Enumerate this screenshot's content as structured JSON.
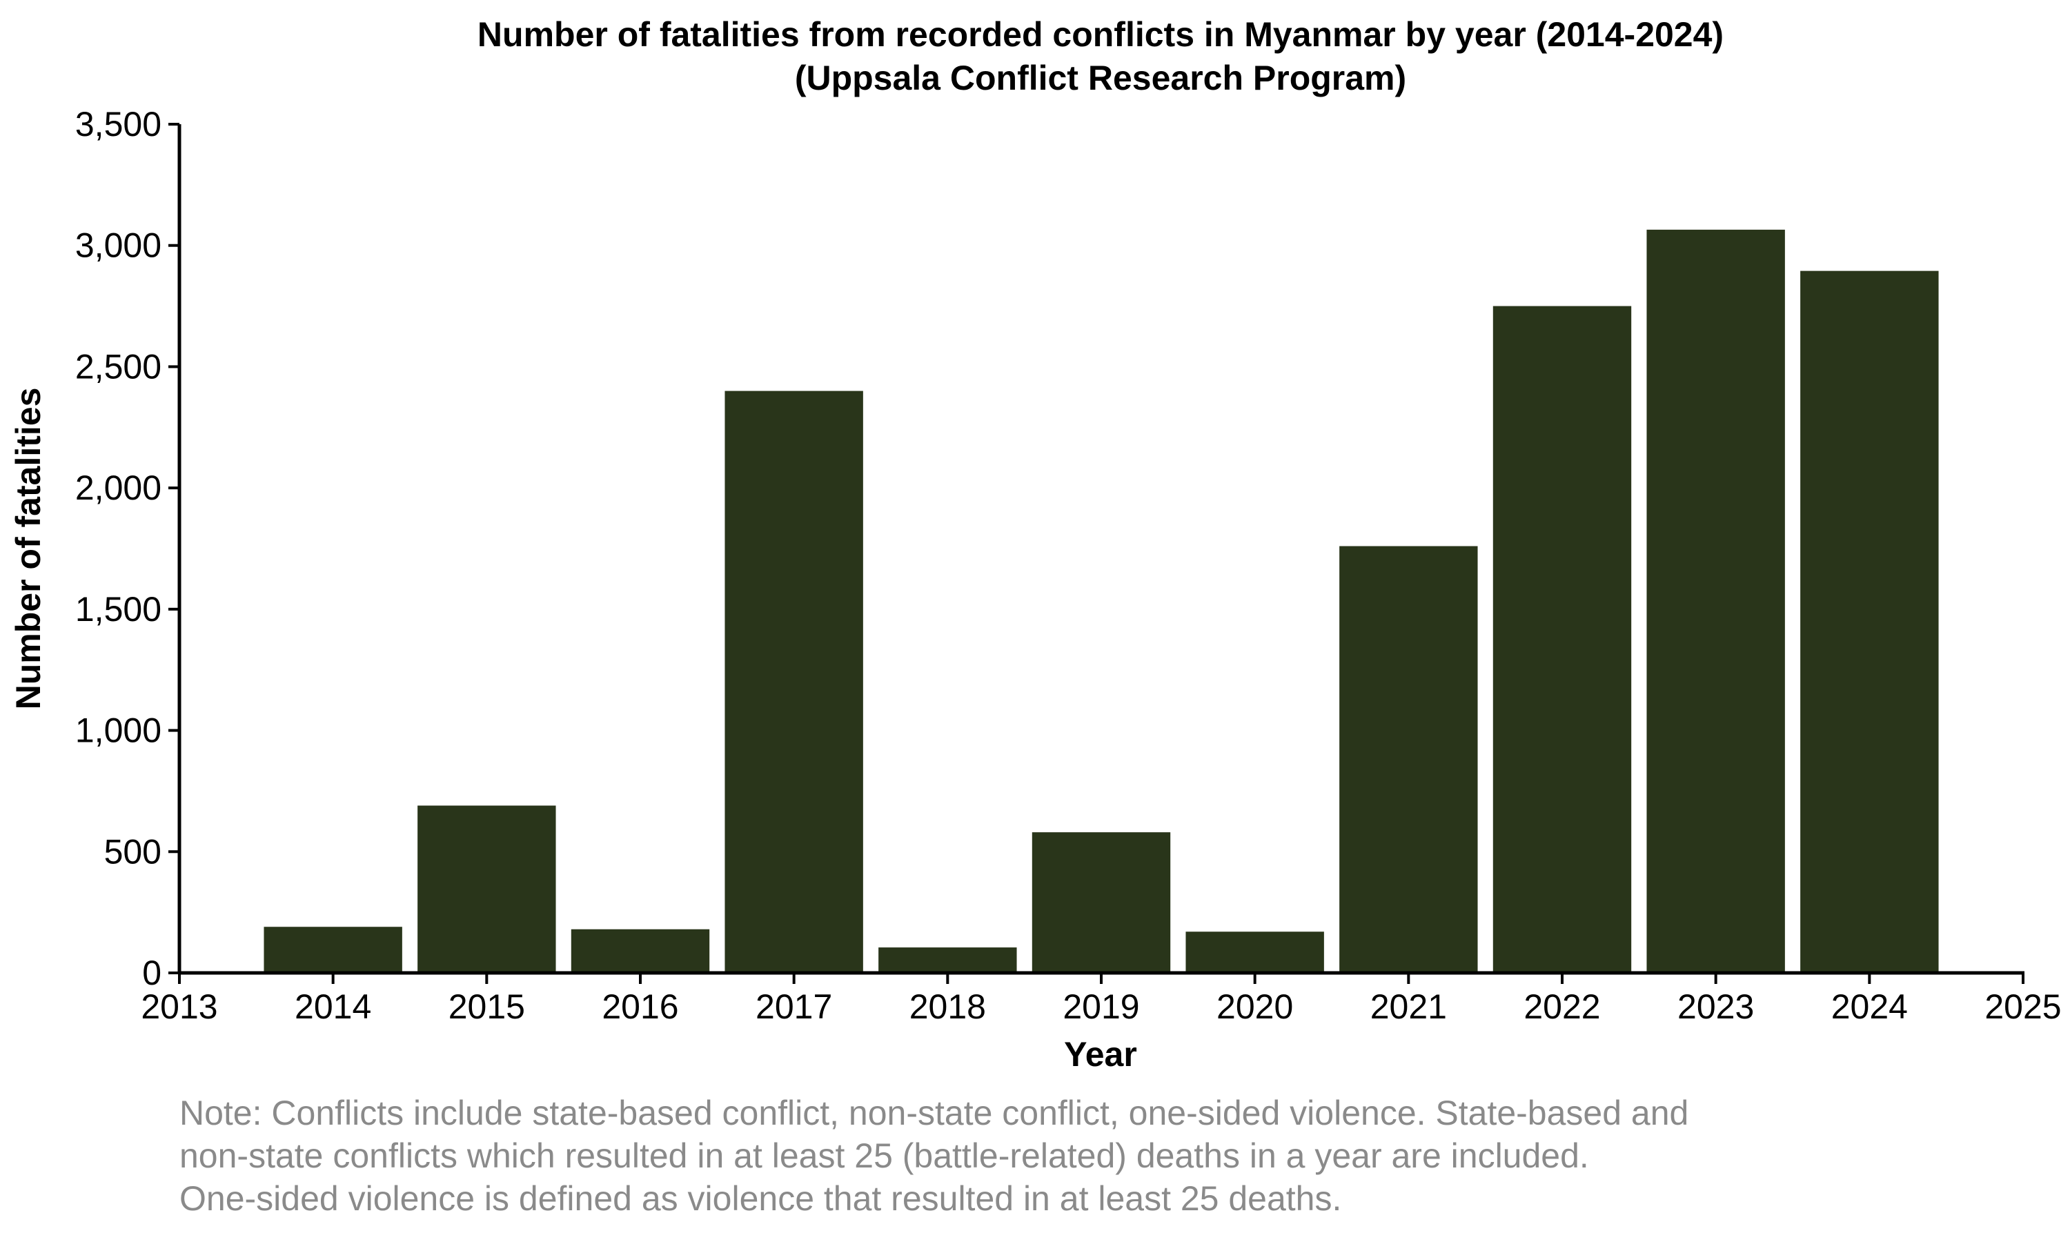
{
  "chart_data": {
    "type": "bar",
    "title": "Number of fatalities from recorded conflicts in Myanmar by year (2014-2024)",
    "subtitle": "(Uppsala Conflict Research Program)",
    "xlabel": "Year",
    "ylabel": "Number of fatalities",
    "categories": [
      2014,
      2015,
      2016,
      2017,
      2018,
      2019,
      2020,
      2021,
      2022,
      2023,
      2024
    ],
    "values": [
      190,
      690,
      180,
      2400,
      105,
      580,
      170,
      1760,
      2750,
      3065,
      2895
    ],
    "xlim": [
      2013,
      2025
    ],
    "ylim": [
      0,
      3500
    ],
    "x_ticks": [
      2013,
      2014,
      2015,
      2016,
      2017,
      2018,
      2019,
      2020,
      2021,
      2022,
      2023,
      2024,
      2025
    ],
    "y_ticks": [
      0,
      500,
      1000,
      1500,
      2000,
      2500,
      3000,
      3500
    ],
    "y_tick_labels": [
      "0",
      "500",
      "1,000",
      "1,500",
      "2,000",
      "2,500",
      "3,000",
      "3,500"
    ],
    "bar_color": "#29351a",
    "grid": false,
    "legend": "none"
  },
  "note": {
    "line1": "Note: Conflicts include state-based conflict, non-state conflict, one-sided violence. State-based and",
    "line2": "non-state conflicts which resulted in at least 25 (battle-related) deaths in a year are included.",
    "line3": "One-sided violence is defined as violence that resulted in at least 25 deaths."
  }
}
